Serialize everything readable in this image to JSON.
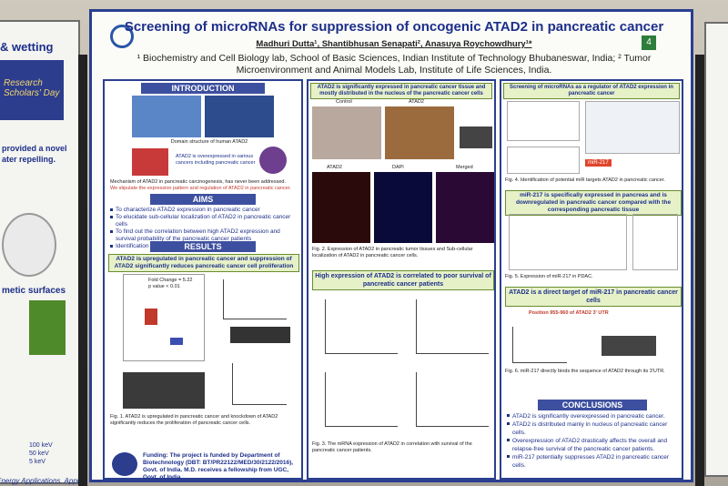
{
  "poster": {
    "title": "Screening of microRNAs for suppression of oncogenic ATAD2 in pancreatic cancer",
    "authors": "Madhuri Dutta¹, Shantibhusan Senapati², Anasuya Roychowdhury¹*",
    "badge": "4",
    "affiliations": "¹ Biochemistry and Cell Biology lab, School of Basic Sciences, Indian Institute of Technology Bhubaneswar, India; ² Tumor Microenvironment and Animal Models Lab, Institute of Life Sciences, India."
  },
  "introduction": {
    "heading": "INTRODUCTION",
    "caption": "Domain structure of human ATAD2",
    "note": "ATAD2 is overexpressed in various cancers including pancreatic cancer",
    "bullets": [
      "Mechanism of ATAD2 in pancreatic carcinogenesis, has never been addressed.",
      "We stipulate the expression pattern and regulation of ATAD2 in pancreatic cancer."
    ]
  },
  "aims": {
    "heading": "AIMS",
    "items": [
      "To characterize ATAD2 expression in pancreatic cancer",
      "To elucidate sub-cellular localization of ATAD2 in pancreatic cancer cells",
      "To find out the correlation between high ATAD2 expression and survival probability of the pancreatic cancer patients",
      "Identification of upstream targets of ATAD2"
    ]
  },
  "results": {
    "heading": "RESULTS",
    "subheading": "ATAD2 is upregulated in pancreatic cancer and suppression of ATAD2 significantly reduces pancreatic cancer cell proliferation",
    "fold_change": "Fold Change = 5.22",
    "p_value": "p value < 0.01",
    "figure_caption": "Fig. 1. ATAD2 is upregulated in pancreatic cancer and knockdown of ATAD2 significantly reduces the proliferation of pancreatic cancer cells."
  },
  "funding": "Funding: The project is funded by Department of Biotechnology (DBT: BT/PR22122/MED/30/2122/2016), Govt. of India. M.D. receives a fellowship from UGC, Govt. of India.",
  "middle": {
    "heading1": "ATAD2 is significantly expressed in pancreatic cancer tissue and mostly distributed in the nucleus of the pancreatic cancer cells",
    "labels": [
      "Control",
      "ATAD2",
      "ATAD2",
      "DAPI",
      "Merged"
    ],
    "caption2": "Fig. 2. Expression of ATAD2 in pancreatic tumor tissues and Sub-cellular localization of ATAD2 in pancreatic cancer cells.",
    "heading2": "High expression of ATAD2 is correlated to poor survival of pancreatic cancer patients",
    "caption3": "Fig. 3. The mRNA expression of ATAD2 in correlation with survival of the pancreatic cancer patients."
  },
  "right": {
    "heading1": "Screening of microRNAs as a regulator of ATAD2 expression in pancreatic cancer",
    "mir_label": "miR-217",
    "caption4": "Fig. 4. Identification of potential miR targets ATAD2 in pancreatic cancer.",
    "heading2": "miR-217 is specifically expressed in pancreas and is downregulated in pancreatic cancer compared with the corresponding pancreatic tissue",
    "caption5": "Fig. 5. Expression of miR-217 in PDAC.",
    "heading3": "ATAD2 is a direct target of miR-217 in pancreatic cancer cells",
    "site": "Position 955-960 of ATAD2 3' UTR",
    "caption6": "Fig. 6. miR-217 directly binds the sequence of ATAD2 through its 3'UTR."
  },
  "conclusions": {
    "heading": "CONCLUSIONS",
    "items": [
      "ATAD2 is significantly overexpressed in pancreatic cancer.",
      "ATAD2 is distributed mainly in nucleus of pancreatic cancer cells.",
      "Overexpression of ATAD2 drastically affects the overall and relapse-free survival of the pancreatic cancer patients.",
      "miR-217 potentially suppresses ATAD2 in pancreatic cancer cells."
    ]
  },
  "neighbor_left": {
    "title": "& wetting",
    "event": "Research Scholars' Day",
    "lines": [
      "provided a novel",
      "ater repelling.",
      "metic surfaces",
      "Energy Applications. Appl"
    ],
    "legend": [
      "100 keV",
      "50 keV",
      "5 keV"
    ]
  }
}
